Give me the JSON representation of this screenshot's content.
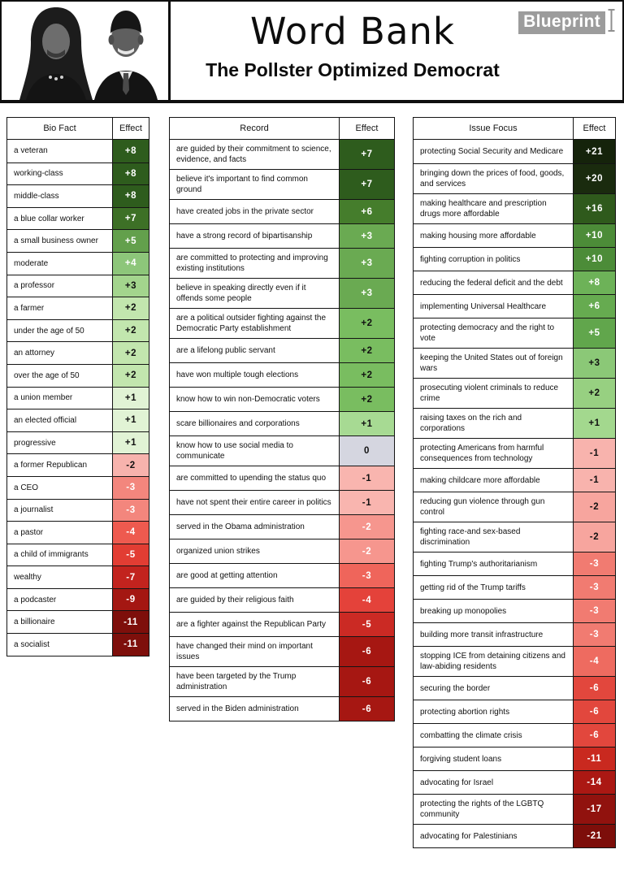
{
  "header": {
    "title": "Word Bank",
    "subtitle": "The Pollster Optimized Democrat",
    "brand": "Blueprint"
  },
  "tables": [
    {
      "id": "bio-fact",
      "title": "Bio Fact",
      "effect_label": "Effect",
      "rows": [
        {
          "label": "a veteran",
          "effect": "+8",
          "bg": "#2e5c1d",
          "fg": "#ffffff"
        },
        {
          "label": "working-class",
          "effect": "+8",
          "bg": "#2e5c1d",
          "fg": "#ffffff"
        },
        {
          "label": "middle-class",
          "effect": "+8",
          "bg": "#2e5c1d",
          "fg": "#ffffff"
        },
        {
          "label": "a blue collar worker",
          "effect": "+7",
          "bg": "#3d7026",
          "fg": "#ffffff"
        },
        {
          "label": "a small business owner",
          "effect": "+5",
          "bg": "#63a04c",
          "fg": "#ffffff"
        },
        {
          "label": "moderate",
          "effect": "+4",
          "bg": "#8dc67a",
          "fg": "#ffffff"
        },
        {
          "label": "a professor",
          "effect": "+3",
          "bg": "#a3d58d",
          "fg": "#111111"
        },
        {
          "label": "a farmer",
          "effect": "+2",
          "bg": "#c2e6ae",
          "fg": "#111111"
        },
        {
          "label": "under the age of 50",
          "effect": "+2",
          "bg": "#c2e6ae",
          "fg": "#111111"
        },
        {
          "label": "an attorney",
          "effect": "+2",
          "bg": "#c2e6ae",
          "fg": "#111111"
        },
        {
          "label": "over the age of 50",
          "effect": "+2",
          "bg": "#c2e6ae",
          "fg": "#111111"
        },
        {
          "label": "a union member",
          "effect": "+1",
          "bg": "#e1f3d5",
          "fg": "#111111"
        },
        {
          "label": "an elected official",
          "effect": "+1",
          "bg": "#e1f3d5",
          "fg": "#111111"
        },
        {
          "label": "progressive",
          "effect": "+1",
          "bg": "#e1f3d5",
          "fg": "#111111"
        },
        {
          "label": "a former Republican",
          "effect": "-2",
          "bg": "#f7b3ad",
          "fg": "#111111"
        },
        {
          "label": "a CEO",
          "effect": "-3",
          "bg": "#f3867d",
          "fg": "#ffffff"
        },
        {
          "label": "a journalist",
          "effect": "-3",
          "bg": "#f3867d",
          "fg": "#ffffff"
        },
        {
          "label": "a pastor",
          "effect": "-4",
          "bg": "#ee5a4f",
          "fg": "#ffffff"
        },
        {
          "label": "a child of immigrants",
          "effect": "-5",
          "bg": "#e23d33",
          "fg": "#ffffff"
        },
        {
          "label": "wealthy",
          "effect": "-7",
          "bg": "#c2231e",
          "fg": "#ffffff"
        },
        {
          "label": "a podcaster",
          "effect": "-9",
          "bg": "#a41712",
          "fg": "#ffffff"
        },
        {
          "label": "a billionaire",
          "effect": "-11",
          "bg": "#7e0f0b",
          "fg": "#ffffff"
        },
        {
          "label": "a socialist",
          "effect": "-11",
          "bg": "#7e0f0b",
          "fg": "#ffffff"
        }
      ]
    },
    {
      "id": "record",
      "title": "Record",
      "effect_label": "Effect",
      "rows": [
        {
          "label": "are guided by their commitment to science, evidence, and facts",
          "effect": "+7",
          "bg": "#2e5c1d",
          "fg": "#ffffff"
        },
        {
          "label": "believe it's important to find common ground",
          "effect": "+7",
          "bg": "#2e5c1d",
          "fg": "#ffffff"
        },
        {
          "label": "have created jobs in the private sector",
          "effect": "+6",
          "bg": "#457d2c",
          "fg": "#ffffff"
        },
        {
          "label": "have a strong record of bipartisanship",
          "effect": "+3",
          "bg": "#6aaa52",
          "fg": "#ffffff"
        },
        {
          "label": "are committed to protecting and improving existing institutions",
          "effect": "+3",
          "bg": "#6aaa52",
          "fg": "#ffffff"
        },
        {
          "label": "believe in speaking directly even if it offends some people",
          "effect": "+3",
          "bg": "#6aaa52",
          "fg": "#ffffff"
        },
        {
          "label": "are a political outsider fighting against the Democratic Party establishment",
          "effect": "+2",
          "bg": "#79bd60",
          "fg": "#111111"
        },
        {
          "label": "are a lifelong public servant",
          "effect": "+2",
          "bg": "#79bd60",
          "fg": "#111111"
        },
        {
          "label": "have won multiple tough elections",
          "effect": "+2",
          "bg": "#79bd60",
          "fg": "#111111"
        },
        {
          "label": "know how to win non-Democratic voters",
          "effect": "+2",
          "bg": "#79bd60",
          "fg": "#111111"
        },
        {
          "label": "scare billionaires and corporations",
          "effect": "+1",
          "bg": "#a7da93",
          "fg": "#111111"
        },
        {
          "label": "know how to use social media to communicate",
          "effect": "0",
          "bg": "#d5d6e0",
          "fg": "#111111"
        },
        {
          "label": "are committed to upending the status quo",
          "effect": "-1",
          "bg": "#f9b5af",
          "fg": "#111111"
        },
        {
          "label": "have not spent their entire career in politics",
          "effect": "-1",
          "bg": "#f9b5af",
          "fg": "#111111"
        },
        {
          "label": "served in the Obama administration",
          "effect": "-2",
          "bg": "#f6968e",
          "fg": "#ffffff"
        },
        {
          "label": "organized union strikes",
          "effect": "-2",
          "bg": "#f6968e",
          "fg": "#ffffff"
        },
        {
          "label": "are good at getting attention",
          "effect": "-3",
          "bg": "#ef655b",
          "fg": "#ffffff"
        },
        {
          "label": "are guided by their religious faith",
          "effect": "-4",
          "bg": "#e4423a",
          "fg": "#ffffff"
        },
        {
          "label": "are a fighter against the Republican Party",
          "effect": "-5",
          "bg": "#cb2a24",
          "fg": "#ffffff"
        },
        {
          "label": "have changed their mind on important issues",
          "effect": "-6",
          "bg": "#a61712",
          "fg": "#ffffff"
        },
        {
          "label": "have been targeted by the Trump administration",
          "effect": "-6",
          "bg": "#a61712",
          "fg": "#ffffff"
        },
        {
          "label": "served in the Biden administration",
          "effect": "-6",
          "bg": "#a61712",
          "fg": "#ffffff"
        }
      ]
    },
    {
      "id": "issue-focus",
      "title": "Issue Focus",
      "effect_label": "Effect",
      "rows": [
        {
          "label": "protecting Social Security and Medicare",
          "effect": "+21",
          "bg": "#15230b",
          "fg": "#ffffff"
        },
        {
          "label": "bringing down the prices of food, goods, and services",
          "effect": "+20",
          "bg": "#1a2b0e",
          "fg": "#ffffff"
        },
        {
          "label": "making healthcare and prescription drugs more affordable",
          "effect": "+16",
          "bg": "#2f5a1c",
          "fg": "#ffffff"
        },
        {
          "label": "making housing more affordable",
          "effect": "+10",
          "bg": "#4c8c38",
          "fg": "#ffffff"
        },
        {
          "label": "fighting corruption in politics",
          "effect": "+10",
          "bg": "#4c8c38",
          "fg": "#ffffff"
        },
        {
          "label": "reducing the federal deficit and the debt",
          "effect": "+8",
          "bg": "#6db258",
          "fg": "#ffffff"
        },
        {
          "label": "implementing Universal Healthcare",
          "effect": "+6",
          "bg": "#66ab50",
          "fg": "#ffffff"
        },
        {
          "label": "protecting democracy and the right to vote",
          "effect": "+5",
          "bg": "#61a64c",
          "fg": "#ffffff"
        },
        {
          "label": "keeping the United States out of foreign wars",
          "effect": "+3",
          "bg": "#8bc877",
          "fg": "#111111"
        },
        {
          "label": "prosecuting violent criminals to reduce crime",
          "effect": "+2",
          "bg": "#97d081",
          "fg": "#111111"
        },
        {
          "label": "raising taxes on the rich and corporations",
          "effect": "+1",
          "bg": "#a3d88e",
          "fg": "#111111"
        },
        {
          "label": "protecting Americans from harmful consequences from technology",
          "effect": "-1",
          "bg": "#f8b3ad",
          "fg": "#111111"
        },
        {
          "label": "making childcare more affordable",
          "effect": "-1",
          "bg": "#f8b3ad",
          "fg": "#111111"
        },
        {
          "label": "reducing gun violence through gun control",
          "effect": "-2",
          "bg": "#f7a59e",
          "fg": "#111111"
        },
        {
          "label": "fighting race-and sex-based discrimination",
          "effect": "-2",
          "bg": "#f7a59e",
          "fg": "#111111"
        },
        {
          "label": "fighting Trump's authoritarianism",
          "effect": "-3",
          "bg": "#f17b71",
          "fg": "#ffffff"
        },
        {
          "label": "getting rid of the Trump tariffs",
          "effect": "-3",
          "bg": "#f17b71",
          "fg": "#ffffff"
        },
        {
          "label": "breaking up monopolies",
          "effect": "-3",
          "bg": "#f17b71",
          "fg": "#ffffff"
        },
        {
          "label": "building more transit infrastructure",
          "effect": "-3",
          "bg": "#f17b71",
          "fg": "#ffffff"
        },
        {
          "label": "stopping ICE from detaining citizens and law-abiding residents",
          "effect": "-4",
          "bg": "#ee6b60",
          "fg": "#ffffff"
        },
        {
          "label": "securing the border",
          "effect": "-6",
          "bg": "#e2473d",
          "fg": "#ffffff"
        },
        {
          "label": "protecting abortion rights",
          "effect": "-6",
          "bg": "#e2473d",
          "fg": "#ffffff"
        },
        {
          "label": "combatting the climate crisis",
          "effect": "-6",
          "bg": "#e2473d",
          "fg": "#ffffff"
        },
        {
          "label": "forgiving student loans",
          "effect": "-11",
          "bg": "#c9291f",
          "fg": "#ffffff"
        },
        {
          "label": "advocating for Israel",
          "effect": "-14",
          "bg": "#ab1813",
          "fg": "#ffffff"
        },
        {
          "label": "protecting the rights of the LGBTQ community",
          "effect": "-17",
          "bg": "#91120e",
          "fg": "#ffffff"
        },
        {
          "label": "advocating for Palestinians",
          "effect": "-21",
          "bg": "#7d0e0a",
          "fg": "#ffffff"
        }
      ]
    }
  ],
  "chart_data": [
    {
      "type": "table",
      "title": "Bio Fact",
      "columns": [
        "Bio Fact",
        "Effect"
      ],
      "rows": [
        [
          "a veteran",
          8
        ],
        [
          "working-class",
          8
        ],
        [
          "middle-class",
          8
        ],
        [
          "a blue collar worker",
          7
        ],
        [
          "a small business owner",
          5
        ],
        [
          "moderate",
          4
        ],
        [
          "a professor",
          3
        ],
        [
          "a farmer",
          2
        ],
        [
          "under the age of 50",
          2
        ],
        [
          "an attorney",
          2
        ],
        [
          "over the age of 50",
          2
        ],
        [
          "a union member",
          1
        ],
        [
          "an elected official",
          1
        ],
        [
          "progressive",
          1
        ],
        [
          "a former Republican",
          -2
        ],
        [
          "a CEO",
          -3
        ],
        [
          "a journalist",
          -3
        ],
        [
          "a pastor",
          -4
        ],
        [
          "a child of immigrants",
          -5
        ],
        [
          "wealthy",
          -7
        ],
        [
          "a podcaster",
          -9
        ],
        [
          "a billionaire",
          -11
        ],
        [
          "a socialist",
          -11
        ]
      ],
      "value_range": [
        -11,
        8
      ],
      "color_scale": "green positive, gray zero, red negative"
    },
    {
      "type": "table",
      "title": "Record",
      "columns": [
        "Record",
        "Effect"
      ],
      "rows": [
        [
          "are guided by their commitment to science, evidence, and facts",
          7
        ],
        [
          "believe it's important to find common ground",
          7
        ],
        [
          "have created jobs in the private sector",
          6
        ],
        [
          "have a strong record of bipartisanship",
          3
        ],
        [
          "are committed to protecting and improving existing institutions",
          3
        ],
        [
          "believe in speaking directly even if it offends some people",
          3
        ],
        [
          "are a political outsider fighting against the Democratic Party establishment",
          2
        ],
        [
          "are a lifelong public servant",
          2
        ],
        [
          "have won multiple tough elections",
          2
        ],
        [
          "know how to win non-Democratic voters",
          2
        ],
        [
          "scare billionaires and corporations",
          1
        ],
        [
          "know how to use social media to communicate",
          0
        ],
        [
          "are committed to upending the status quo",
          -1
        ],
        [
          "have not spent their entire career in politics",
          -1
        ],
        [
          "served in the Obama administration",
          -2
        ],
        [
          "organized union strikes",
          -2
        ],
        [
          "are good at getting attention",
          -3
        ],
        [
          "are guided by their religious faith",
          -4
        ],
        [
          "are a fighter against the Republican Party",
          -5
        ],
        [
          "have changed their mind on important issues",
          -6
        ],
        [
          "have been targeted by the Trump administration",
          -6
        ],
        [
          "served in the Biden administration",
          -6
        ]
      ],
      "value_range": [
        -6,
        7
      ],
      "color_scale": "green positive, gray zero, red negative"
    },
    {
      "type": "table",
      "title": "Issue Focus",
      "columns": [
        "Issue Focus",
        "Effect"
      ],
      "rows": [
        [
          "protecting Social Security and Medicare",
          21
        ],
        [
          "bringing down the prices of food, goods, and services",
          20
        ],
        [
          "making healthcare and prescription drugs more affordable",
          16
        ],
        [
          "making housing more affordable",
          10
        ],
        [
          "fighting corruption in politics",
          10
        ],
        [
          "reducing the federal deficit and the debt",
          8
        ],
        [
          "implementing Universal Healthcare",
          6
        ],
        [
          "protecting democracy and the right to vote",
          5
        ],
        [
          "keeping the United States out of foreign wars",
          3
        ],
        [
          "prosecuting violent criminals to reduce crime",
          2
        ],
        [
          "raising taxes on the rich and corporations",
          1
        ],
        [
          "protecting Americans from harmful consequences from technology",
          -1
        ],
        [
          "making childcare more affordable",
          -1
        ],
        [
          "reducing gun violence through gun control",
          -2
        ],
        [
          "fighting race-and sex-based discrimination",
          -2
        ],
        [
          "fighting Trump's authoritarianism",
          -3
        ],
        [
          "getting rid of the Trump tariffs",
          -3
        ],
        [
          "breaking up monopolies",
          -3
        ],
        [
          "building more transit infrastructure",
          -3
        ],
        [
          "stopping ICE from detaining citizens and law-abiding residents",
          -4
        ],
        [
          "securing the border",
          -6
        ],
        [
          "protecting abortion rights",
          -6
        ],
        [
          "combatting the climate crisis",
          -6
        ],
        [
          "forgiving student loans",
          -11
        ],
        [
          "advocating for Israel",
          -14
        ],
        [
          "protecting the rights of the LGBTQ community",
          -17
        ],
        [
          "advocating for Palestinians",
          -21
        ]
      ],
      "value_range": [
        -21,
        21
      ],
      "color_scale": "green positive, gray zero, red negative"
    }
  ]
}
